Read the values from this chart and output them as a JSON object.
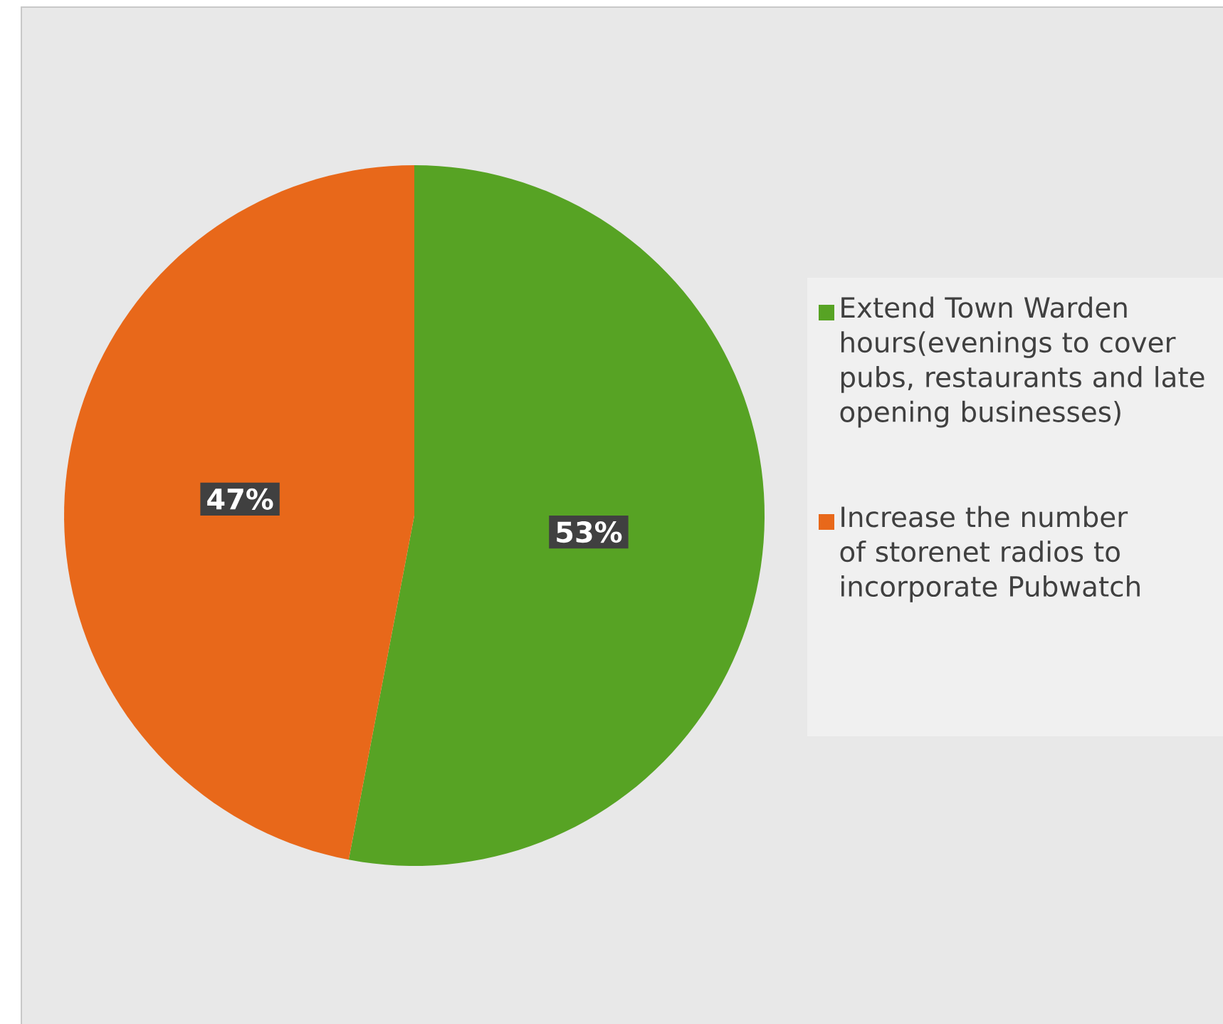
{
  "chart_data": {
    "type": "pie",
    "categories": [
      "Extend Town Warden hours(evenings to cover pubs, restaurants and late opening businesses)",
      "Increase the number of storenet radios to incorporate Pubwatch"
    ],
    "values": [
      53,
      47
    ],
    "colors": [
      "#57a324",
      "#e8681a"
    ],
    "value_labels": [
      "53%",
      "47%"
    ],
    "legend": "right"
  }
}
